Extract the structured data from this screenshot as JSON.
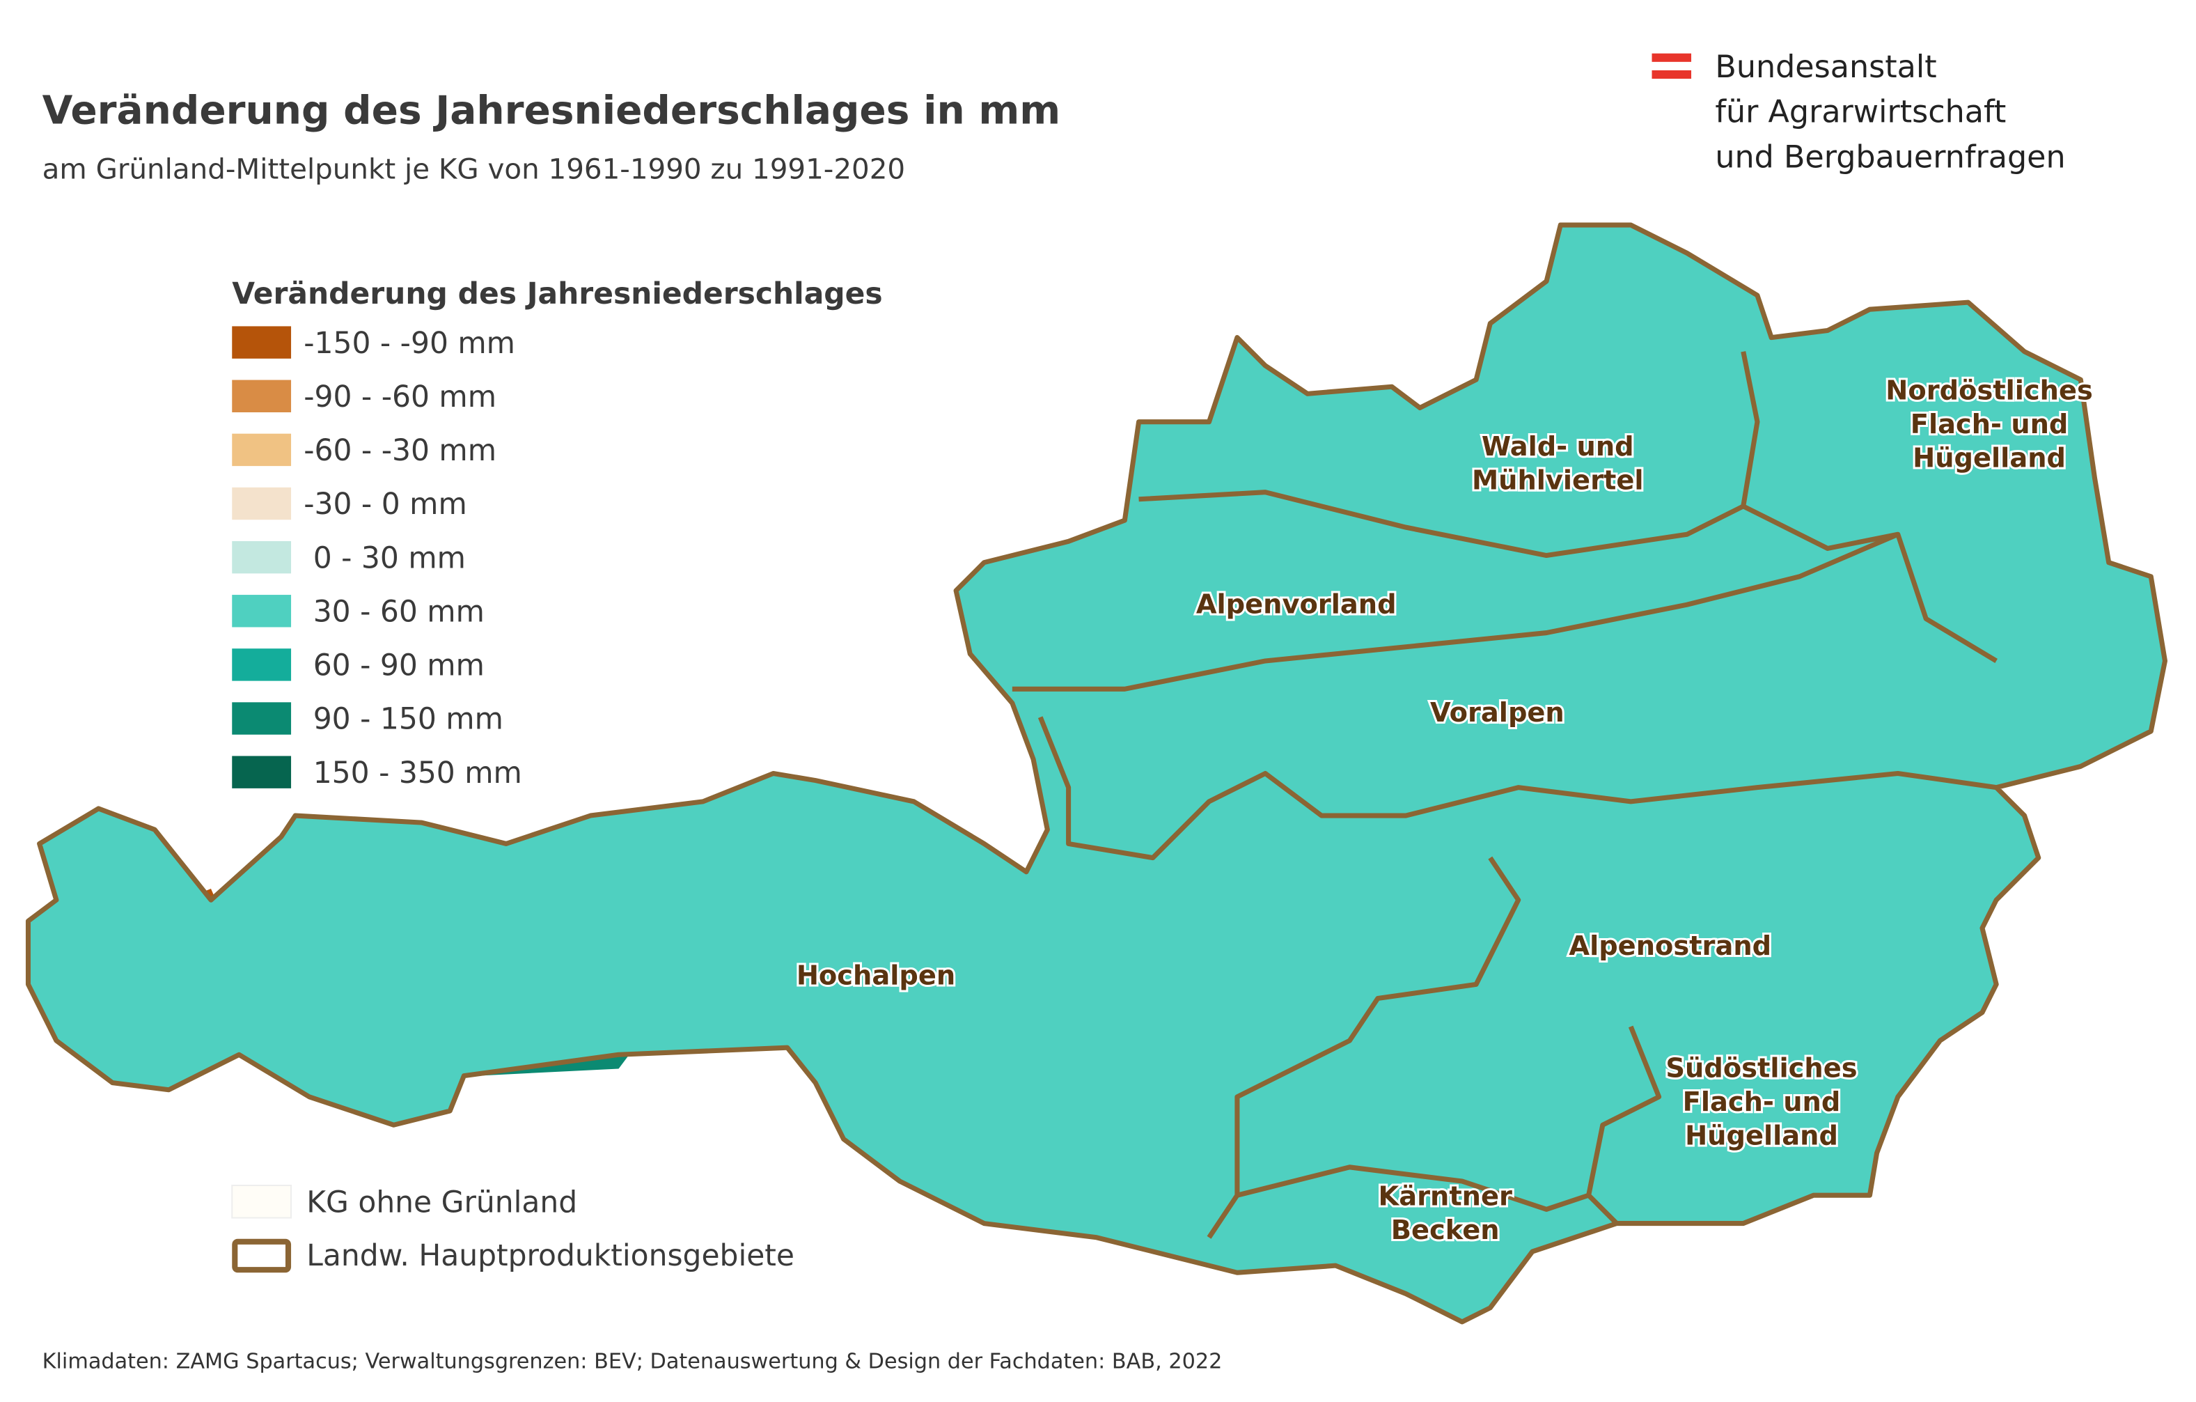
{
  "header": {
    "title": "Veränderung des Jahresniederschlages in mm",
    "subtitle": "am Grünland-Mittelpunkt je KG von 1961-1990 zu 1991-2020"
  },
  "logo": {
    "lines": [
      "Bundesanstalt",
      "für Agrarwirtschaft",
      "und Bergbauernfragen"
    ]
  },
  "legend": {
    "title": "Veränderung des Jahresniederschlages",
    "items": [
      {
        "label": "-150 - -90 mm",
        "color": "#b5540a"
      },
      {
        "label": "-90 - -60 mm",
        "color": "#d98c45"
      },
      {
        "label": "-60 - -30 mm",
        "color": "#f0c283"
      },
      {
        "label": "-30 - 0 mm",
        "color": "#f4e2cc"
      },
      {
        "label": " 0 - 30 mm",
        "color": "#c3e8e0"
      },
      {
        "label": " 30 - 60 mm",
        "color": "#4fd0c0"
      },
      {
        "label": " 60 - 90 mm",
        "color": "#14ad9b"
      },
      {
        "label": " 90 - 150 mm",
        "color": "#0b8a72"
      },
      {
        "label": " 150 - 350 mm",
        "color": "#06654f"
      }
    ],
    "no_grassland": "KG ohne Grünland",
    "regions_boundary": "Landw. Hauptproduktionsgebiete"
  },
  "regions": [
    {
      "label": "Nordöstliches Flach- und Hügelland"
    },
    {
      "label": "Wald- und Mühlviertel"
    },
    {
      "label": "Alpenvorland"
    },
    {
      "label": "Voralpen"
    },
    {
      "label": "Hochalpen"
    },
    {
      "label": "Alpenostrand"
    },
    {
      "label": "Südöstliches Flach- und Hügelland"
    },
    {
      "label": "Kärntner Becken"
    }
  ],
  "source": "Klimadaten: ZAMG Spartacus; Verwaltungsgrenzen: BEV; Datenauswertung & Design der Fachdaten: BAB, 2022"
}
